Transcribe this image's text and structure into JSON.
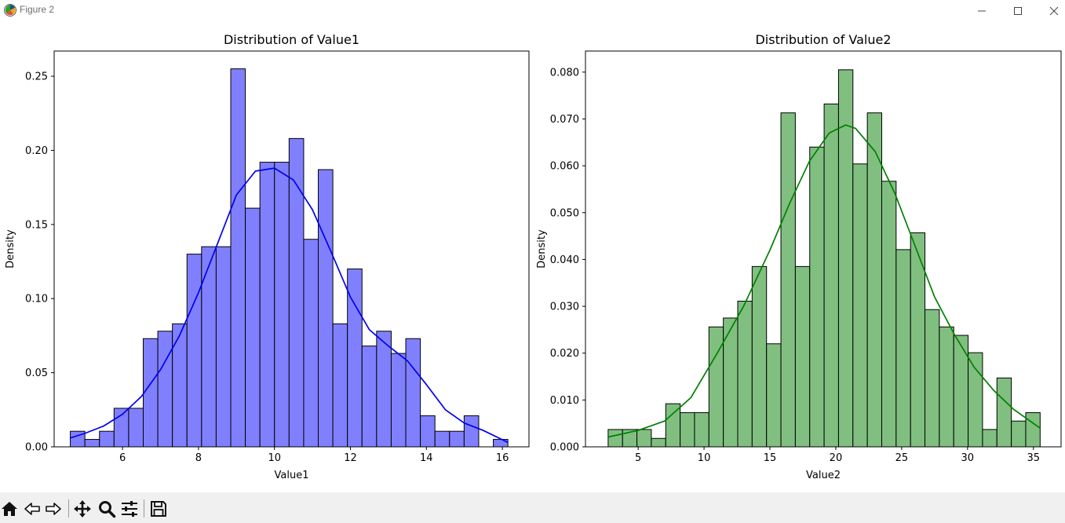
{
  "window": {
    "title": "Figure 2",
    "icons": [
      "matplotlib-icon",
      "minimize-icon",
      "maximize-icon",
      "close-icon"
    ]
  },
  "toolbar": {
    "buttons": [
      "home-icon",
      "back-icon",
      "forward-icon",
      "pan-icon",
      "zoom-icon",
      "configure-subplots-icon",
      "save-icon"
    ]
  },
  "chart_data": [
    {
      "type": "bar",
      "subtype": "histogram-with-kde",
      "title": "Distribution of Value1",
      "xlabel": "Value1",
      "ylabel": "Density",
      "xlim": [
        4.2,
        16.7
      ],
      "ylim": [
        0,
        0.267
      ],
      "xticks": [
        6,
        8,
        10,
        12,
        14,
        16
      ],
      "xtick_labels": [
        "6",
        "8",
        "10",
        "12",
        "14",
        "16"
      ],
      "yticks": [
        0,
        0.05,
        0.1,
        0.15,
        0.2,
        0.25
      ],
      "ytick_labels": [
        "0.00",
        "0.05",
        "0.10",
        "0.15",
        "0.20",
        "0.25"
      ],
      "bin_start": 4.625,
      "bin_width": 0.384,
      "values": [
        0.0105,
        0.005,
        0.0105,
        0.026,
        0.026,
        0.073,
        0.078,
        0.083,
        0.13,
        0.135,
        0.135,
        0.255,
        0.161,
        0.192,
        0.192,
        0.208,
        0.14,
        0.187,
        0.083,
        0.12,
        0.068,
        0.078,
        0.063,
        0.073,
        0.021,
        0.0105,
        0.0105,
        0.021,
        0.0,
        0.005
      ],
      "bar_color": "#8080ff",
      "edge_color": "#000000",
      "kde": {
        "color": "#0000ee",
        "x": [
          4.625,
          5.0,
          5.5,
          6.0,
          6.5,
          7.0,
          7.5,
          8.0,
          8.5,
          9.0,
          9.5,
          10.0,
          10.5,
          11.0,
          11.5,
          12.0,
          12.5,
          13.0,
          13.5,
          14.0,
          14.5,
          15.0,
          15.5,
          16.145
        ],
        "y": [
          0.006,
          0.009,
          0.014,
          0.022,
          0.034,
          0.052,
          0.075,
          0.104,
          0.137,
          0.17,
          0.186,
          0.188,
          0.18,
          0.16,
          0.131,
          0.101,
          0.079,
          0.068,
          0.058,
          0.042,
          0.025,
          0.016,
          0.011,
          0.003
        ]
      }
    },
    {
      "type": "bar",
      "subtype": "histogram-with-kde",
      "title": "Distribution of Value2",
      "xlabel": "Value2",
      "ylabel": "Density",
      "xlim": [
        1.0,
        37.1
      ],
      "ylim": [
        0,
        0.0845
      ],
      "xticks": [
        5,
        10,
        15,
        20,
        25,
        30,
        35
      ],
      "xtick_labels": [
        "5",
        "10",
        "15",
        "20",
        "25",
        "30",
        "35"
      ],
      "yticks": [
        0,
        0.01,
        0.02,
        0.03,
        0.04,
        0.05,
        0.06,
        0.07,
        0.08
      ],
      "ytick_labels": [
        "0.000",
        "0.010",
        "0.020",
        "0.030",
        "0.040",
        "0.050",
        "0.060",
        "0.070",
        "0.080"
      ],
      "bin_start": 2.72,
      "bin_width": 1.093,
      "values": [
        0.0037,
        0.0037,
        0.0037,
        0.0018,
        0.0092,
        0.0073,
        0.0073,
        0.0256,
        0.0275,
        0.0311,
        0.0385,
        0.022,
        0.0713,
        0.0385,
        0.064,
        0.0732,
        0.0805,
        0.0604,
        0.0713,
        0.0567,
        0.0421,
        0.0457,
        0.0293,
        0.0256,
        0.0238,
        0.0201,
        0.0037,
        0.0147,
        0.0055,
        0.0073
      ],
      "bar_color": "#80bf80",
      "edge_color": "#000000",
      "kde": {
        "color": "#008000",
        "x": [
          2.72,
          5.0,
          7.0,
          9.0,
          11.0,
          13.0,
          15.0,
          16.5,
          18.0,
          19.5,
          20.75,
          21.5,
          23.0,
          24.5,
          26.0,
          27.5,
          29.0,
          30.5,
          32.0,
          33.5,
          35.5
        ],
        "y": [
          0.0021,
          0.0035,
          0.0055,
          0.0105,
          0.02,
          0.03,
          0.042,
          0.052,
          0.061,
          0.067,
          0.0687,
          0.068,
          0.063,
          0.054,
          0.043,
          0.032,
          0.024,
          0.017,
          0.012,
          0.008,
          0.004
        ]
      }
    }
  ]
}
